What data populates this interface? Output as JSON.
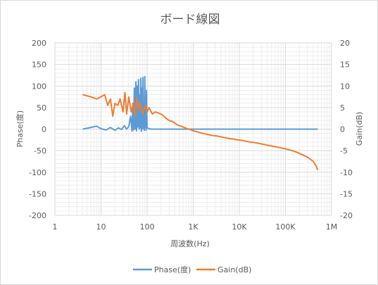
{
  "chart_data": {
    "type": "line",
    "title": "ボード線図",
    "xlabel": "周波数(Hz)",
    "ylabel_left": "Phase(度)",
    "ylabel_right": "Gain(dB)",
    "x_scale": "log",
    "xlim": [
      1,
      1000000
    ],
    "ylim_left": [
      -200,
      200
    ],
    "ylim_right": [
      -20,
      20
    ],
    "x_ticks": [
      {
        "value": 1,
        "label": "1"
      },
      {
        "value": 10,
        "label": "10"
      },
      {
        "value": 100,
        "label": "100"
      },
      {
        "value": 1000,
        "label": "1K"
      },
      {
        "value": 10000,
        "label": "10K"
      },
      {
        "value": 100000,
        "label": "100K"
      },
      {
        "value": 1000000,
        "label": "1M"
      }
    ],
    "y_ticks_left": [
      "200",
      "150",
      "100",
      "50",
      "0",
      "-50",
      "-100",
      "-150",
      "-200"
    ],
    "y_ticks_right": [
      "20",
      "15",
      "10",
      "5",
      "0",
      "-5",
      "-10",
      "-15",
      "-20"
    ],
    "grid": true,
    "legend_position": "bottom",
    "series": [
      {
        "name": "Phase(度)",
        "axis": "left",
        "color": "#5b9bd5",
        "x": [
          4,
          6,
          8,
          10,
          13,
          16,
          20,
          24,
          28,
          32,
          36,
          40,
          44,
          47,
          49,
          51,
          53,
          55,
          57,
          59,
          61,
          63,
          65,
          67,
          69,
          71,
          73,
          75,
          77,
          79,
          81,
          83,
          85,
          87,
          89,
          91,
          93,
          95,
          97,
          100,
          105,
          120,
          200,
          500,
          1000,
          10000,
          100000,
          500000
        ],
        "y": [
          0,
          4,
          7,
          1,
          -2,
          4,
          -3,
          3,
          -1,
          8,
          0,
          6,
          30,
          -5,
          60,
          -2,
          95,
          0,
          110,
          -4,
          100,
          5,
          115,
          0,
          80,
          3,
          118,
          -5,
          95,
          0,
          120,
          2,
          60,
          -3,
          122,
          5,
          40,
          -2,
          90,
          3,
          2,
          0,
          0,
          0,
          0,
          0,
          0,
          0
        ]
      },
      {
        "name": "Gain(dB)",
        "axis": "right",
        "color": "#ed7d31",
        "x": [
          4,
          6,
          8,
          10,
          12,
          14,
          16,
          18,
          20,
          23,
          26,
          30,
          33,
          36,
          40,
          45,
          50,
          55,
          60,
          65,
          70,
          80,
          90,
          100,
          110,
          130,
          150,
          170,
          200,
          230,
          260,
          300,
          350,
          400,
          450,
          500,
          600,
          700,
          800,
          900,
          1000,
          1200,
          1500,
          1800,
          2200,
          2700,
          3300,
          4000,
          5000,
          6000,
          7500,
          9000,
          11000,
          14000,
          17000,
          21000,
          26000,
          32000,
          40000,
          50000,
          62000,
          77000,
          95000,
          120000,
          150000,
          190000,
          240000,
          300000,
          350000,
          400000,
          430000,
          460000,
          480000,
          500000
        ],
        "y": [
          8,
          7.5,
          7.0,
          7.5,
          8,
          5.5,
          7,
          3,
          6,
          5.5,
          7,
          4,
          8.5,
          3.5,
          7.5,
          4,
          6,
          3,
          7.5,
          4.5,
          6,
          3.5,
          5.5,
          4,
          5,
          3.5,
          4,
          3.8,
          3.5,
          3.0,
          2.5,
          2.0,
          1.8,
          1.4,
          1.0,
          0.8,
          0.5,
          0.2,
          0.0,
          -0.2,
          -0.4,
          -0.6,
          -0.9,
          -1.1,
          -1.3,
          -1.5,
          -1.6,
          -1.8,
          -2.0,
          -2.2,
          -2.3,
          -2.5,
          -2.6,
          -2.8,
          -3.0,
          -3.1,
          -3.3,
          -3.5,
          -3.7,
          -3.9,
          -4.1,
          -4.3,
          -4.5,
          -4.8,
          -5.1,
          -5.5,
          -6.0,
          -6.5,
          -7.0,
          -7.5,
          -8.0,
          -8.5,
          -9.0,
          -9.5
        ]
      }
    ]
  }
}
